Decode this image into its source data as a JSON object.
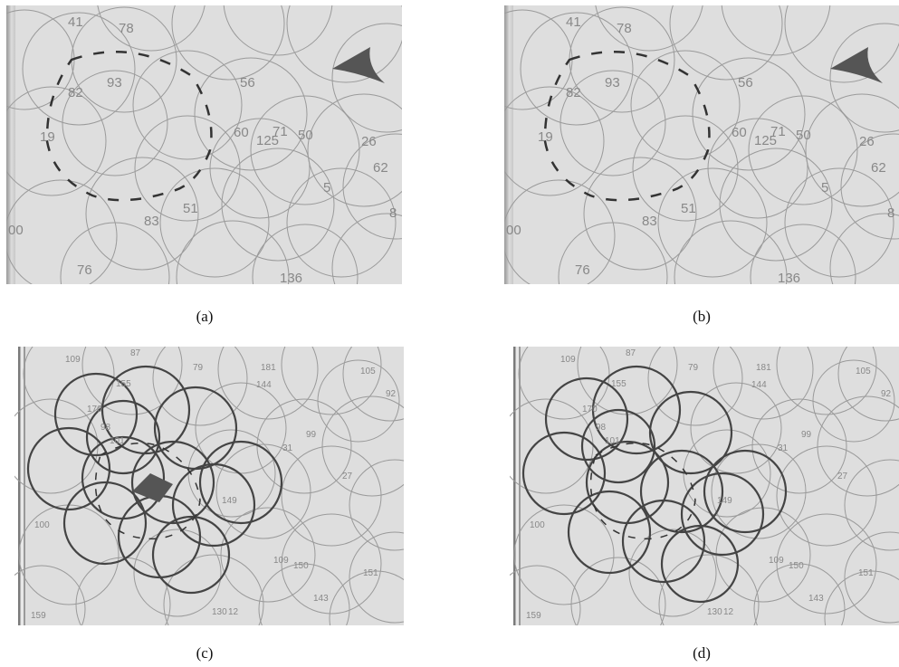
{
  "captions": {
    "a": "(a)",
    "b": "(b)",
    "c": "(c)",
    "d": "(d)"
  },
  "colors": {
    "panel_bg": "#dedede",
    "circle": "#9a9a9a",
    "circle_dark": "#444444",
    "label": "#888888",
    "dashed": "#333333",
    "hole": "#555555"
  },
  "top_panels": {
    "labels": [
      "41",
      "78",
      "82",
      "93",
      "56",
      "19",
      "60",
      "71",
      "50",
      "125",
      "26",
      "62",
      "5",
      "83",
      "51",
      "00",
      "76",
      "136",
      "8"
    ]
  },
  "bottom_panels": {
    "labels": [
      "109",
      "87",
      "79",
      "155",
      "181",
      "144",
      "105",
      "92",
      "170",
      "98",
      "101",
      "31",
      "99",
      "27",
      "149",
      "100",
      "109",
      "150",
      "151",
      "143",
      "159",
      "130",
      "12"
    ]
  }
}
